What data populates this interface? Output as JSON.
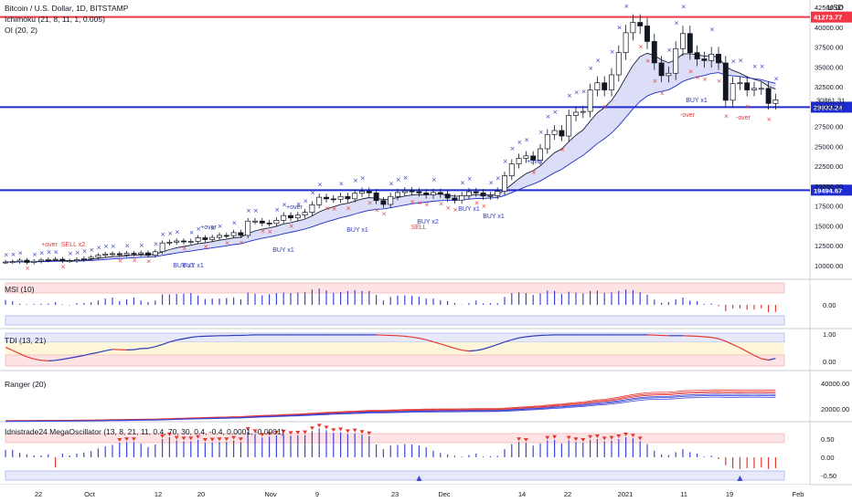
{
  "panels": {
    "main": {
      "title": "Bitcoin / U.S. Dollar, 1D, BITSTAMP",
      "legend_2": "Ichimoku (21, 8, 11, 1, 0.005)",
      "legend_3": "OI (20, 2)",
      "currency": "USD",
      "last_price": "30861.31"
    },
    "msi": {
      "title": "MSI (10)"
    },
    "tdi": {
      "title": "TDI (13, 21)"
    },
    "ranger": {
      "title": "Ranger (20)"
    },
    "mega": {
      "title": "Idnistrade24 MegaOscillator (13, 8, 21, 11, 0.4, 70, 30, 0.4, -0.4, 0.0001, -0.0001)"
    }
  },
  "chart_data": [
    {
      "type": "candlestick",
      "title": "Bitcoin / U.S. Dollar, 1D, BITSTAMP",
      "x_tick_labels": [
        "22",
        "Oct",
        "12",
        "20",
        "Nov",
        "9",
        "23",
        "Dec",
        "14",
        "22",
        "2021",
        "11",
        "19",
        "Feb"
      ],
      "y_tick_labels": [
        "10000.00",
        "12500.00",
        "15000.00",
        "17500.00",
        "20000.00",
        "22500.00",
        "25000.00",
        "27500.00",
        "30000.00",
        "32500.00",
        "35000.00",
        "37500.00",
        "40000.00",
        "42500.00"
      ],
      "ylim": [
        8500,
        43500
      ],
      "horizontal_levels": [
        {
          "value": 41273.77,
          "label": "41273.77",
          "color": "#f23645"
        },
        {
          "value": 29933.24,
          "label": "29933.24",
          "color": "#1e2bd1"
        },
        {
          "value": 19494.67,
          "label": "19494.67",
          "color": "#1e2bd1"
        }
      ],
      "last_price": "30861.31",
      "close": [
        10450,
        10500,
        10680,
        10400,
        10550,
        10700,
        10770,
        10800,
        10590,
        10610,
        10760,
        10880,
        11050,
        11300,
        11450,
        11500,
        11350,
        11550,
        11450,
        11600,
        11300,
        11750,
        12850,
        12950,
        13100,
        13000,
        13050,
        13500,
        13270,
        13550,
        13800,
        13770,
        14150,
        13800,
        15600,
        15600,
        15350,
        15300,
        15700,
        16300,
        16000,
        16350,
        16700,
        17650,
        18600,
        18400,
        18350,
        18700,
        18400,
        19100,
        19350,
        19150,
        18180,
        17700,
        18700,
        19200,
        19400,
        19300,
        19150,
        18900,
        19200,
        19000,
        18500,
        18250,
        18800,
        19300,
        19150,
        18750,
        18800,
        19350,
        21300,
        22800,
        23500,
        23800,
        23250,
        24700,
        26500,
        27000,
        26300,
        28900,
        29300,
        29400,
        32100,
        33000,
        32100,
        34000,
        36800,
        39300,
        40600,
        40150,
        38200,
        35500,
        33900,
        34200,
        37300,
        39200,
        36800,
        36000,
        35800,
        36600,
        35500,
        30800,
        32900,
        33000,
        32100,
        32300,
        32300,
        30400,
        30861
      ],
      "annotations": [
        "+over",
        "SELL x2",
        "BUY x1",
        "BUY x1",
        "+over",
        "BUY x1",
        "+over",
        "BUY x1",
        "BUY x2",
        "SELL",
        "BUY x1",
        "BUY x1",
        "+over",
        "BUY x1",
        "-over",
        "-over"
      ]
    },
    {
      "type": "bar",
      "title": "MSI (10)",
      "y_tick_labels": [
        "0.00"
      ],
      "values": [
        0.18,
        0.13,
        0.04,
        0.02,
        0.03,
        0.04,
        0.05,
        0.1,
        0.02,
        -0.02,
        0.06,
        0.07,
        0.09,
        0.16,
        0.23,
        0.27,
        0.14,
        0.2,
        0.27,
        0.16,
        0.1,
        0.16,
        0.38,
        0.38,
        0.4,
        0.41,
        0.43,
        0.34,
        0.22,
        0.23,
        0.23,
        0.25,
        0.27,
        0.2,
        0.45,
        0.41,
        0.35,
        0.39,
        0.43,
        0.45,
        0.43,
        0.45,
        0.46,
        0.56,
        0.59,
        0.53,
        0.44,
        0.47,
        0.51,
        0.54,
        0.51,
        0.51,
        0.36,
        0.16,
        0.29,
        0.34,
        0.35,
        0.33,
        0.3,
        0.23,
        0.23,
        0.17,
        0.14,
        0.07,
        0.01,
        0.06,
        0.16,
        0.05,
        0.06,
        0.06,
        0.29,
        0.43,
        0.46,
        0.43,
        0.36,
        0.42,
        0.52,
        0.51,
        0.4,
        0.48,
        0.45,
        0.42,
        0.51,
        0.52,
        0.44,
        0.46,
        0.51,
        0.56,
        0.54,
        0.46,
        0.37,
        0.19,
        0.08,
        0.1,
        0.2,
        0.27,
        0.16,
        0.13,
        0.03,
        0.05,
        -0.05,
        -0.23,
        -0.13,
        -0.13,
        -0.18,
        -0.17,
        -0.13,
        -0.27,
        -0.26
      ]
    },
    {
      "type": "line",
      "title": "TDI (13, 21)",
      "y_tick_labels": [
        "0.00",
        "1.00"
      ],
      "values": [
        0.52,
        0.4,
        0.28,
        0.17,
        0.09,
        0.04,
        0.02,
        0.04,
        0.08,
        0.12,
        0.17,
        0.22,
        0.28,
        0.33,
        0.39,
        0.44,
        0.43,
        0.42,
        0.43,
        0.47,
        0.48,
        0.54,
        0.62,
        0.71,
        0.78,
        0.83,
        0.88,
        0.91,
        0.92,
        0.93,
        0.94,
        0.94,
        0.95,
        0.95,
        0.96,
        0.97,
        0.97,
        0.97,
        0.97,
        0.97,
        0.97,
        0.97,
        0.97,
        0.97,
        0.97,
        0.97,
        0.97,
        0.97,
        0.97,
        0.97,
        0.97,
        0.97,
        0.97,
        0.96,
        0.95,
        0.94,
        0.92,
        0.89,
        0.85,
        0.79,
        0.72,
        0.64,
        0.56,
        0.48,
        0.41,
        0.38,
        0.4,
        0.45,
        0.53,
        0.62,
        0.71,
        0.79,
        0.86,
        0.9,
        0.93,
        0.95,
        0.96,
        0.97,
        0.97,
        0.97,
        0.97,
        0.97,
        0.97,
        0.97,
        0.97,
        0.97,
        0.97,
        0.97,
        0.97,
        0.97,
        0.97,
        0.96,
        0.95,
        0.94,
        0.94,
        0.94,
        0.93,
        0.92,
        0.9,
        0.88,
        0.83,
        0.74,
        0.62,
        0.5,
        0.36,
        0.22,
        0.1,
        0.05,
        0.11
      ]
    },
    {
      "type": "line",
      "title": "Ranger (20)",
      "y_tick_labels": [
        "20000.00",
        "40000.00"
      ],
      "series": [
        {
          "values": [
            10530,
            10560,
            10590,
            10610,
            10640,
            10670,
            10700,
            10730,
            10760,
            10790,
            10830,
            10880,
            10950,
            11030,
            11120,
            11210,
            11280,
            11360,
            11430,
            11500,
            11540,
            11640,
            11810,
            11990,
            12170,
            12330,
            12480,
            12650,
            12780,
            12920,
            13070,
            13190,
            13350,
            13450,
            13730,
            14000,
            14210,
            14400,
            14610,
            14850,
            15050,
            15270,
            15500,
            15800,
            16120,
            16400,
            16650,
            16900,
            17100,
            17350,
            17580,
            17780,
            17880,
            17920,
            18060,
            18230,
            18400,
            18530,
            18630,
            18700,
            18790,
            18850,
            18870,
            18880,
            18910,
            18990,
            19040,
            19050,
            19070,
            19130,
            19340,
            19680,
            20040,
            20390,
            20660,
            21010,
            21470,
            21900,
            22230,
            22750,
            23230,
            23660,
            24330,
            24970,
            25440,
            26070,
            26840,
            27740,
            28630,
            29390,
            29910,
            30190,
            30300,
            30420,
            30790,
            31300,
            31540,
            31720,
            31860,
            32070,
            32140,
            31920,
            31980,
            32040,
            32030,
            32050,
            32070,
            31970,
            31920
          ]
        }
      ]
    },
    {
      "type": "bar",
      "title": "Idnistrade24 MegaOscillator (13, 8, 21, 11, 0.4, 70, 30, 0.4, -0.4, 0.0001, -0.0001)",
      "y_tick_labels": [
        "-0.50",
        "0.00",
        "0.50"
      ],
      "values": [
        0.2,
        0.2,
        0.12,
        0.08,
        0.05,
        0.05,
        0.08,
        -0.28,
        0.1,
        0.05,
        0.1,
        0.13,
        0.17,
        0.24,
        0.3,
        0.34,
        0.4,
        0.42,
        0.42,
        0.38,
        0.28,
        0.35,
        0.5,
        0.55,
        0.46,
        0.44,
        0.44,
        0.48,
        0.4,
        0.41,
        0.42,
        0.42,
        0.46,
        0.42,
        0.7,
        0.64,
        0.54,
        0.57,
        0.6,
        0.63,
        0.59,
        0.6,
        0.61,
        0.72,
        0.79,
        0.74,
        0.67,
        0.69,
        0.64,
        0.66,
        0.62,
        0.58,
        0.35,
        0.22,
        0.32,
        0.34,
        0.36,
        0.35,
        0.32,
        0.27,
        0.18,
        0.12,
        0.08,
        0.04,
        0.02,
        0.06,
        0.1,
        0.02,
        0.03,
        0.04,
        0.22,
        0.36,
        0.42,
        0.4,
        0.32,
        0.38,
        0.46,
        0.48,
        0.38,
        0.46,
        0.42,
        0.4,
        0.48,
        0.5,
        0.44,
        0.46,
        0.5,
        0.55,
        0.52,
        0.44,
        0.36,
        0.18,
        0.08,
        0.06,
        0.14,
        0.22,
        0.14,
        0.1,
        0.02,
        0.04,
        -0.05,
        -0.22,
        -0.3,
        -0.32,
        -0.3,
        -0.3,
        -0.28,
        -0.32,
        -0.3
      ]
    }
  ]
}
